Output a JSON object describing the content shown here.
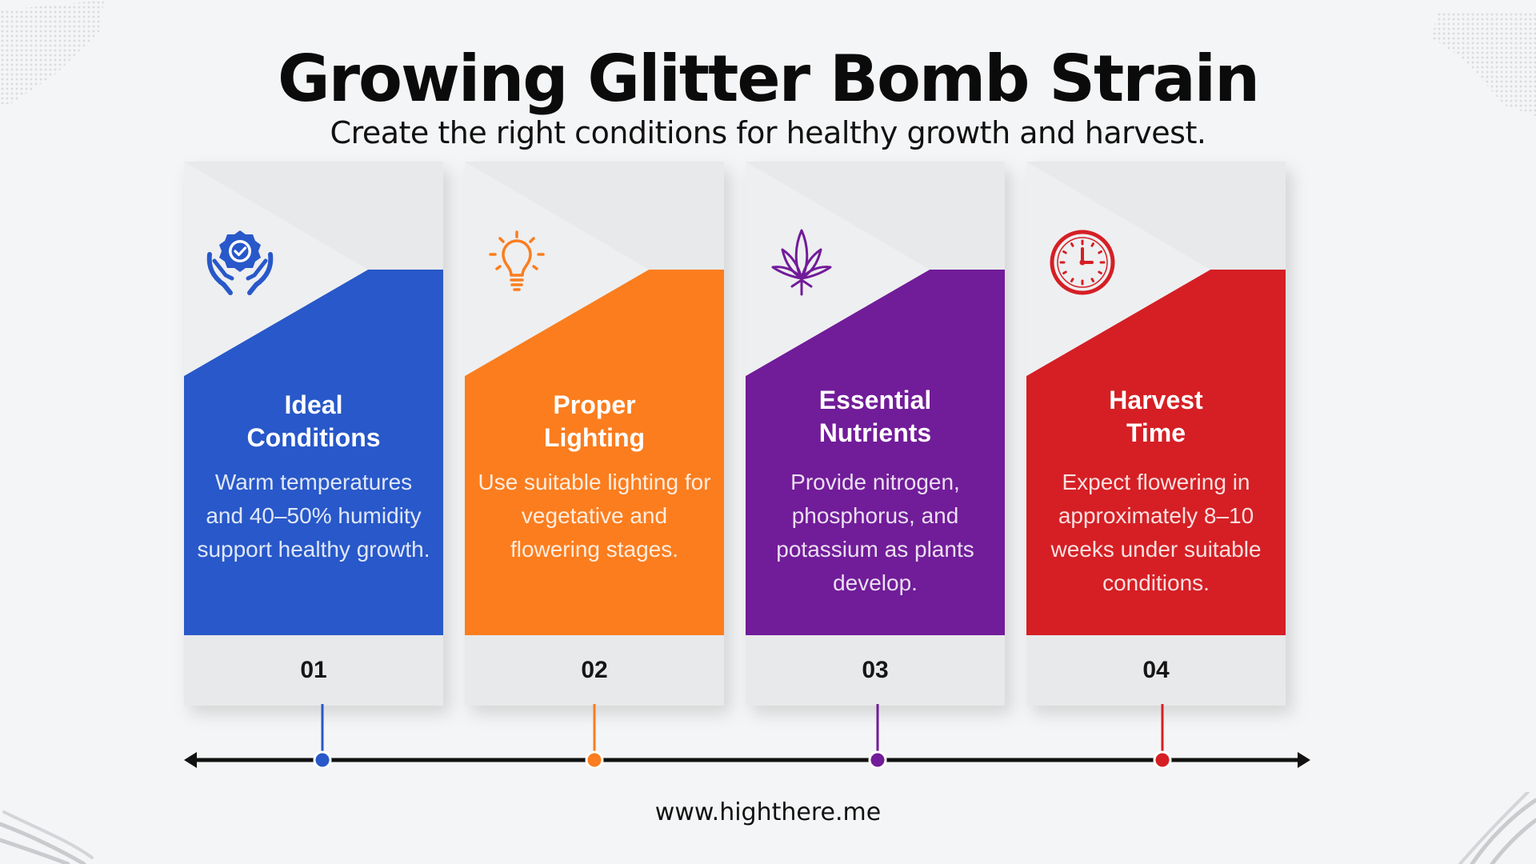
{
  "header": {
    "title": "Growing Glitter Bomb Strain",
    "subtitle": "Create the right conditions for healthy growth and harvest."
  },
  "steps": [
    {
      "number": "01",
      "title_line1": "Ideal",
      "title_line2": "Conditions",
      "description": "Warm temperatures and 40–50% humidity support healthy growth.",
      "icon": "hands-badge-check-icon",
      "color": "#2858c9"
    },
    {
      "number": "02",
      "title_line1": "Proper",
      "title_line2": "Lighting",
      "description": "Use suitable lighting for vegetative and flowering stages.",
      "icon": "lightbulb-icon",
      "color": "#fb7d1e"
    },
    {
      "number": "03",
      "title_line1": "Essential",
      "title_line2": "Nutrients",
      "description": "Provide nitrogen, phosphorus, and potassium as plants develop.",
      "icon": "cannabis-leaf-icon",
      "color": "#711c99"
    },
    {
      "number": "04",
      "title_line1": "Harvest",
      "title_line2": "Time",
      "description": "Expect flowering in approximately 8–10 weeks under suitable conditions.",
      "icon": "clock-icon",
      "color": "#d51f24"
    }
  ],
  "footer": {
    "url": "www.highthere.me"
  },
  "colors": {
    "background": "#f4f5f6",
    "card_light": "#e8e9eb",
    "timeline": "#111111"
  }
}
